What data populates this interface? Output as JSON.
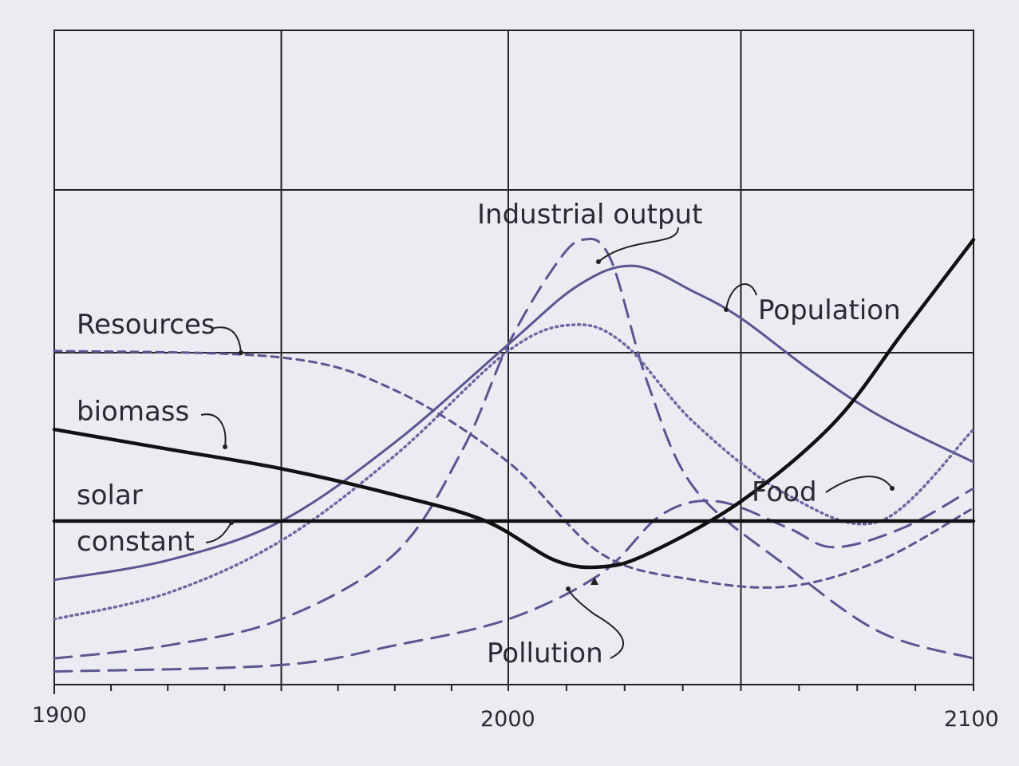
{
  "chart_data": {
    "type": "line",
    "title": "",
    "xlabel": "",
    "ylabel": "",
    "xlim": [
      1900,
      2100
    ],
    "ylim": [
      0,
      100
    ],
    "x_ticks": [
      "1900",
      "2000",
      "2100"
    ],
    "grid": true,
    "legend": "none (inline annotations)",
    "series": [
      {
        "name": "Population",
        "style": "solid",
        "color": "#5b5590",
        "x": [
          1900,
          1925,
          1950,
          1975,
          2000,
          2015,
          2027,
          2040,
          2050,
          2065,
          2080,
          2100
        ],
        "values": [
          16,
          19,
          25,
          37,
          52,
          61,
          64,
          60,
          56,
          48,
          41,
          34
        ]
      },
      {
        "name": "Industrial output",
        "style": "longdash",
        "color": "#5b5590",
        "x": [
          1900,
          1925,
          1950,
          1975,
          1990,
          2000,
          2010,
          2016,
          2022,
          2030,
          2040,
          2060,
          2080,
          2100
        ],
        "values": [
          4,
          6,
          10,
          20,
          36,
          52,
          64,
          68,
          65,
          46,
          30,
          18,
          8,
          4
        ]
      },
      {
        "name": "Food",
        "style": "dotted",
        "color": "#6e68a0",
        "x": [
          1900,
          1925,
          1950,
          1975,
          2000,
          2014,
          2025,
          2040,
          2060,
          2080,
          2100
        ],
        "values": [
          10,
          14,
          22,
          35,
          51,
          55,
          52,
          40,
          29,
          25,
          39
        ]
      },
      {
        "name": "Resources",
        "style": "shortdash",
        "color": "#5b5590",
        "x": [
          1900,
          1950,
          1975,
          2000,
          2020,
          2040,
          2060,
          2080,
          2100
        ],
        "values": [
          51,
          50,
          45,
          34,
          20,
          16,
          15,
          19,
          27
        ]
      },
      {
        "name": "Pollution",
        "style": "longdash",
        "color": "#5b5590",
        "x": [
          1900,
          1950,
          1975,
          2000,
          2020,
          2033,
          2045,
          2060,
          2070,
          2085,
          2100
        ],
        "values": [
          2,
          3,
          6,
          10,
          17,
          26,
          28,
          24,
          21,
          24,
          30
        ]
      },
      {
        "name": "biomass",
        "style": "solid-thick",
        "color": "#111111",
        "x": [
          1900,
          1925,
          1950,
          1975,
          1995,
          2010,
          2020,
          2030,
          2050,
          2070,
          2085,
          2100
        ],
        "values": [
          39,
          36,
          33,
          29,
          25,
          19,
          18,
          20,
          28,
          40,
          54,
          68
        ]
      },
      {
        "name": "solar constant",
        "style": "solid-thick",
        "color": "#111111",
        "x": [
          1900,
          2100
        ],
        "values": [
          25,
          25
        ]
      }
    ],
    "annotations": {
      "industrial": "Industrial output",
      "population": "Population",
      "resources": "Resources",
      "biomass": "biomass",
      "solar1": "solar",
      "solar2": "constant",
      "food": "Food",
      "pollution": "Pollution"
    }
  }
}
